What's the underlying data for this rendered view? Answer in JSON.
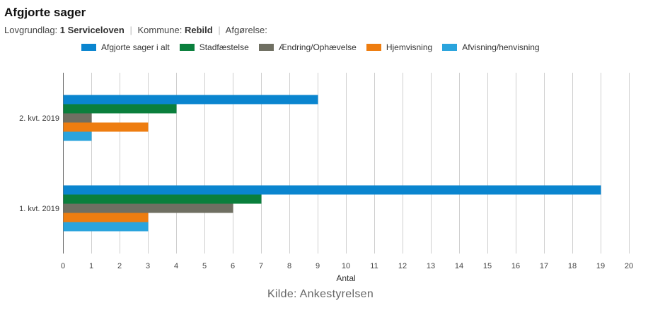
{
  "header": {
    "title": "Afgjorte sager",
    "filters": [
      {
        "label": "Lovgrundlag:",
        "value": "1 Serviceloven"
      },
      {
        "label": "Kommune:",
        "value": "Rebild"
      },
      {
        "label": "Afgørelse:",
        "value": ""
      }
    ]
  },
  "source": "Kilde: Ankestyrelsen",
  "chart_data": {
    "type": "bar",
    "orientation": "horizontal",
    "categories": [
      "2. kvt. 2019",
      "1. kvt. 2019"
    ],
    "series": [
      {
        "name": "Afgjorte sager i alt",
        "color": "#0a85cf",
        "values": [
          9,
          19
        ]
      },
      {
        "name": "Stadfæstelse",
        "color": "#0a7f3c",
        "values": [
          4,
          7
        ]
      },
      {
        "name": "Ændring/Ophævelse",
        "color": "#6f6f62",
        "values": [
          1,
          6
        ]
      },
      {
        "name": "Hjemvisning",
        "color": "#ee7d10",
        "values": [
          3,
          3
        ]
      },
      {
        "name": "Afvisning/henvisning",
        "color": "#2aa4dd",
        "values": [
          1,
          3
        ]
      }
    ],
    "xlabel": "Antal",
    "ylabel": "",
    "xlim": [
      0,
      20
    ],
    "xticks": [
      "0",
      "1",
      "2",
      "3",
      "4",
      "5",
      "6",
      "7",
      "8",
      "9",
      "10",
      "11",
      "12",
      "13",
      "14",
      "15",
      "16",
      "17",
      "18",
      "19",
      "20"
    ],
    "grid": true,
    "legend_position": "top"
  }
}
